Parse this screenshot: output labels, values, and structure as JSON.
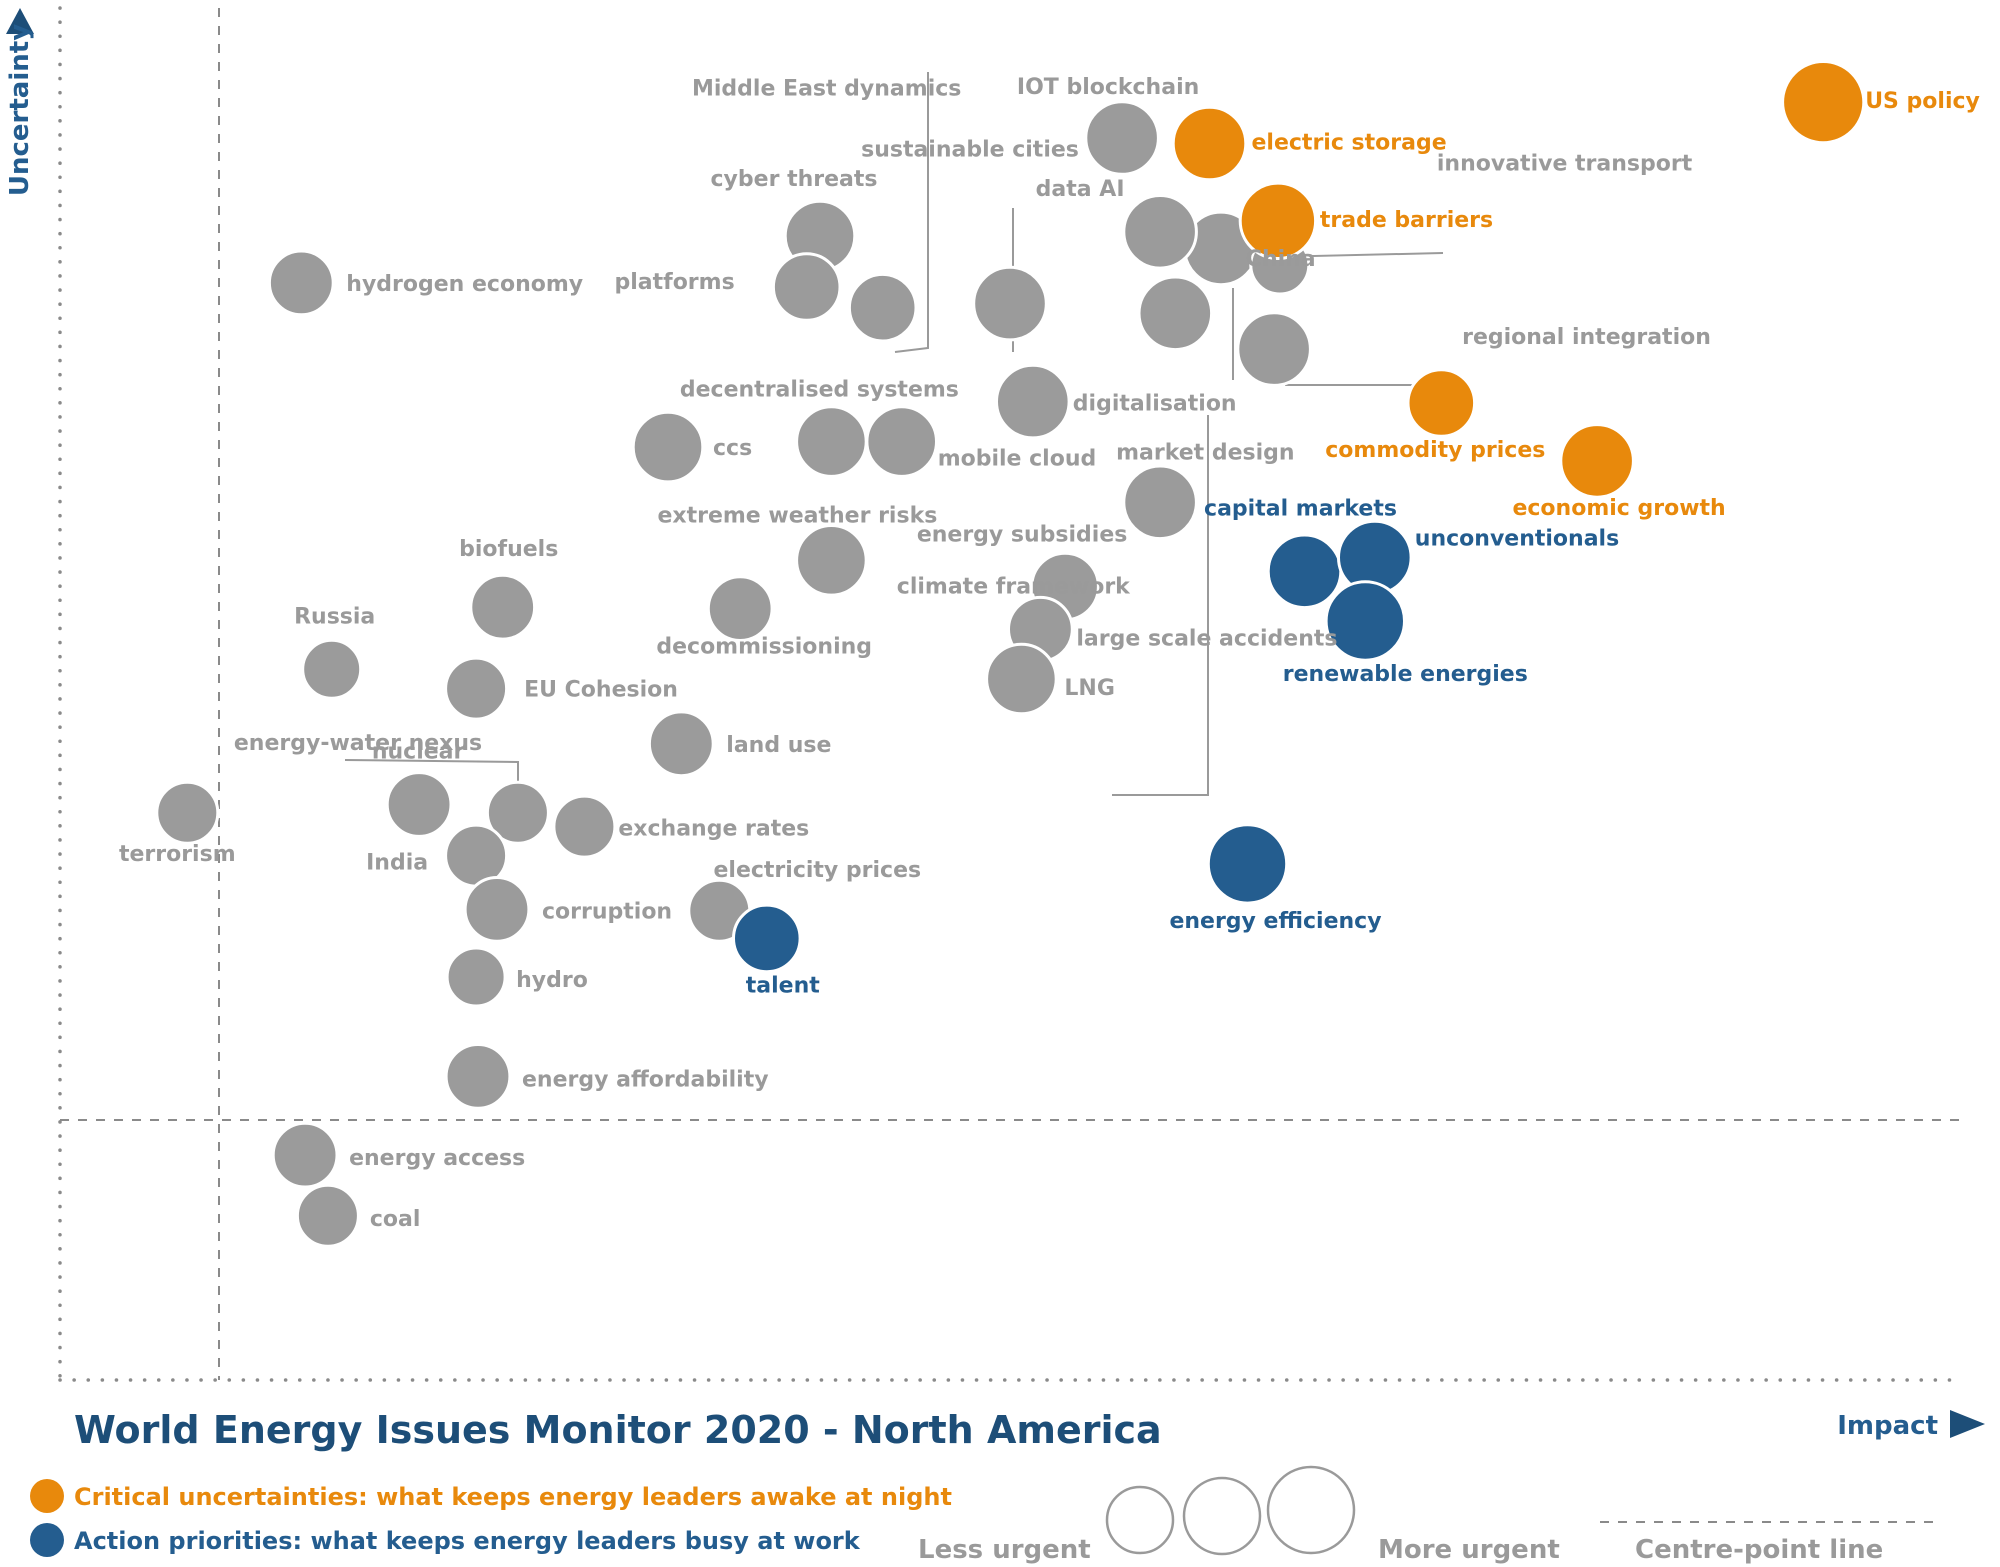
{
  "chart_data": {
    "type": "scatter",
    "title": "World Energy Issues Monitor 2020 - North America",
    "xlabel": "Impact",
    "ylabel": "Uncertainty",
    "xlim": [
      0,
      10
    ],
    "ylim": [
      0,
      10
    ],
    "centre_point": {
      "x": 0.84,
      "y": 1.98
    },
    "colors": {
      "grey": "#9b9b9b",
      "orange": "#e8890c",
      "blue": "#245d8f"
    },
    "categories": {
      "orange": "Critical uncertainties: what keeps energy leaders awake at night",
      "blue": "Action priorities: what keeps energy leaders busy at work"
    },
    "size_legend": {
      "less": "Less urgent",
      "more": "More urgent",
      "centre": "Centre-point  line"
    },
    "points": [
      {
        "name": "US policy",
        "x": 9.28,
        "y": 9.26,
        "cat": "orange",
        "size": 1.4
      },
      {
        "name": "electric storage",
        "x": 6.05,
        "y": 8.96,
        "cat": "orange",
        "size": 1.25
      },
      {
        "name": "trade barriers",
        "x": 6.41,
        "y": 8.4,
        "cat": "orange",
        "size": 1.3
      },
      {
        "name": "commodity prices",
        "x": 7.27,
        "y": 7.08,
        "cat": "orange",
        "size": 1.15
      },
      {
        "name": "economic growth",
        "x": 8.09,
        "y": 6.66,
        "cat": "orange",
        "size": 1.25
      },
      {
        "name": "capital markets",
        "x": 6.55,
        "y": 5.86,
        "cat": "blue",
        "size": 1.25
      },
      {
        "name": "unconventionals",
        "x": 6.92,
        "y": 5.96,
        "cat": "blue",
        "size": 1.25
      },
      {
        "name": "renewable energies",
        "x": 6.87,
        "y": 5.5,
        "cat": "blue",
        "size": 1.35
      },
      {
        "name": "energy efficiency",
        "x": 6.25,
        "y": 3.74,
        "cat": "blue",
        "size": 1.35
      },
      {
        "name": "talent",
        "x": 3.72,
        "y": 3.2,
        "cat": "blue",
        "size": 1.15
      },
      {
        "name": "IOT blockchain",
        "x": 5.59,
        "y": 9.0,
        "cat": "grey",
        "size": 1.25
      },
      {
        "name": "innovative transport",
        "x": 6.11,
        "y": 8.2,
        "cat": "grey",
        "size": 1.25
      },
      {
        "name": "data AI",
        "x": 5.79,
        "y": 8.32,
        "cat": "grey",
        "size": 1.25
      },
      {
        "name": "China",
        "x": 6.42,
        "y": 8.08,
        "cat": "grey",
        "size": 1.0
      },
      {
        "name": "regional integration",
        "x": 6.39,
        "y": 7.47,
        "cat": "grey",
        "size": 1.25
      },
      {
        "name": "Middle East dynamics",
        "x": 4.33,
        "y": 7.77,
        "cat": "grey",
        "size": 1.15
      },
      {
        "name": "sustainable cities",
        "x": 5.0,
        "y": 7.8,
        "cat": "grey",
        "size": 1.25
      },
      {
        "name": "cyber threats",
        "x": 4.0,
        "y": 8.29,
        "cat": "grey",
        "size": 1.2
      },
      {
        "name": "platforms",
        "x": 3.93,
        "y": 7.92,
        "cat": "grey",
        "size": 1.15
      },
      {
        "name": "digitalisation",
        "x": 5.12,
        "y": 7.09,
        "cat": "grey",
        "size": 1.25
      },
      {
        "name": "market design",
        "x": 5.79,
        "y": 6.36,
        "cat": "grey",
        "size": 1.25
      },
      {
        "name": "climate framework",
        "x": 5.87,
        "y": 7.73,
        "cat": "grey",
        "size": 1.25
      },
      {
        "name": "hydrogen economy",
        "x": 1.27,
        "y": 7.95,
        "cat": "grey",
        "size": 1.1
      },
      {
        "name": "decentralised systems",
        "x": 4.06,
        "y": 6.8,
        "cat": "grey",
        "size": 1.2
      },
      {
        "name": "mobile cloud",
        "x": 4.43,
        "y": 6.8,
        "cat": "grey",
        "size": 1.2
      },
      {
        "name": "ccs",
        "x": 3.2,
        "y": 6.76,
        "cat": "grey",
        "size": 1.2
      },
      {
        "name": "extreme weather risks",
        "x": 4.06,
        "y": 5.94,
        "cat": "grey",
        "size": 1.2
      },
      {
        "name": "energy subsidies",
        "x": 5.29,
        "y": 5.75,
        "cat": "grey",
        "size": 1.15
      },
      {
        "name": "large scale accidents",
        "x": 5.16,
        "y": 5.44,
        "cat": "grey",
        "size": 1.1
      },
      {
        "name": "LNG",
        "x": 5.06,
        "y": 5.08,
        "cat": "grey",
        "size": 1.2
      },
      {
        "name": "decommissioning",
        "x": 3.58,
        "y": 5.59,
        "cat": "grey",
        "size": 1.1
      },
      {
        "name": "biofuels",
        "x": 2.33,
        "y": 5.6,
        "cat": "grey",
        "size": 1.1
      },
      {
        "name": "Russia",
        "x": 1.43,
        "y": 5.15,
        "cat": "grey",
        "size": 1.0
      },
      {
        "name": "EU Cohesion",
        "x": 2.19,
        "y": 5.01,
        "cat": "grey",
        "size": 1.05
      },
      {
        "name": "land use",
        "x": 3.27,
        "y": 4.61,
        "cat": "grey",
        "size": 1.1
      },
      {
        "name": "terrorism",
        "x": 0.67,
        "y": 4.11,
        "cat": "grey",
        "size": 1.05
      },
      {
        "name": "nuclear",
        "x": 1.89,
        "y": 4.17,
        "cat": "grey",
        "size": 1.1
      },
      {
        "name": "energy-water nexus",
        "x": 2.41,
        "y": 4.11,
        "cat": "grey",
        "size": 1.05
      },
      {
        "name": "exchange rates",
        "x": 2.76,
        "y": 4.01,
        "cat": "grey",
        "size": 1.05
      },
      {
        "name": "India",
        "x": 2.19,
        "y": 3.8,
        "cat": "grey",
        "size": 1.05
      },
      {
        "name": "corruption",
        "x": 2.3,
        "y": 3.41,
        "cat": "grey",
        "size": 1.1
      },
      {
        "name": "electricity prices",
        "x": 3.47,
        "y": 3.4,
        "cat": "grey",
        "size": 1.05
      },
      {
        "name": "hydro",
        "x": 2.19,
        "y": 2.92,
        "cat": "grey",
        "size": 1.0
      },
      {
        "name": "energy affordability",
        "x": 2.2,
        "y": 2.2,
        "cat": "grey",
        "size": 1.1
      },
      {
        "name": "energy access",
        "x": 1.29,
        "y": 1.63,
        "cat": "grey",
        "size": 1.1
      },
      {
        "name": "coal",
        "x": 1.41,
        "y": 1.19,
        "cat": "grey",
        "size": 1.05
      }
    ]
  }
}
